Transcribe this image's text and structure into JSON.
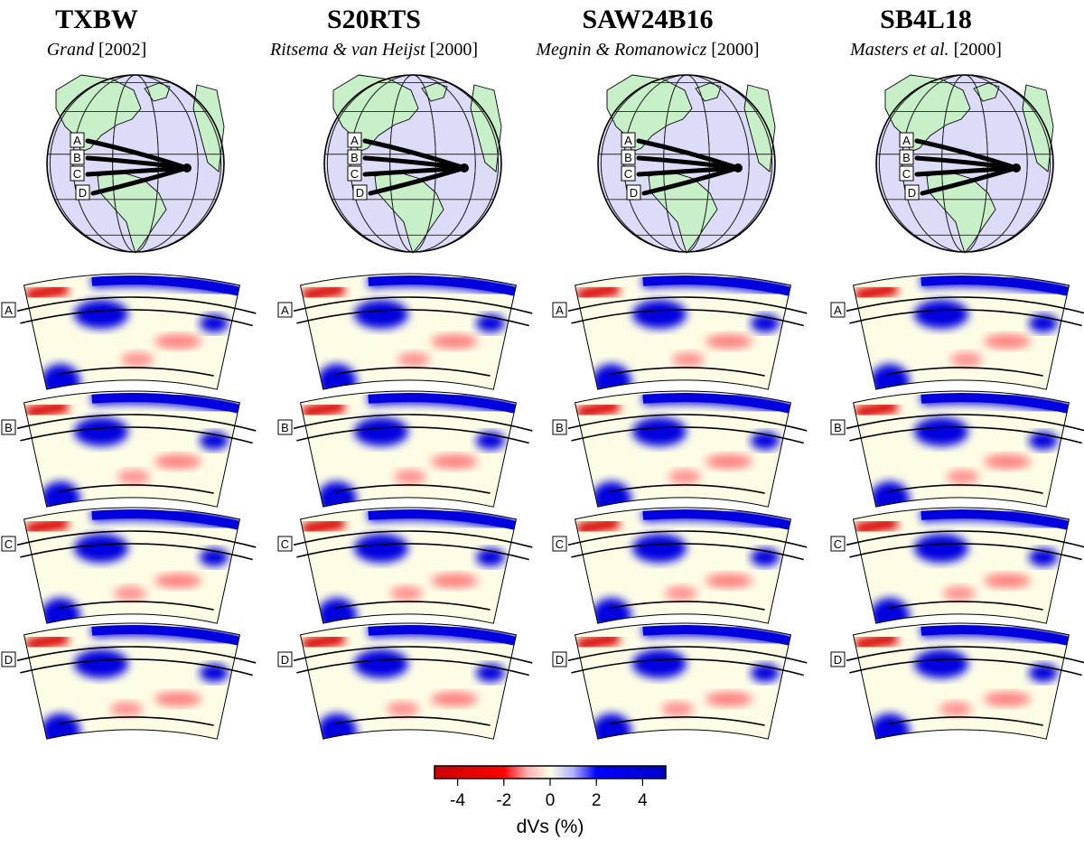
{
  "models": [
    {
      "name": "TXBW",
      "author": "Grand",
      "year": "[2002]"
    },
    {
      "name": "S20RTS",
      "author": "Ritsema & van Heijst",
      "year": "[2000]"
    },
    {
      "name": "SAW24B16",
      "author": "Megnin & Romanowicz",
      "year": "[2000]"
    },
    {
      "name": "SB4L18",
      "author": "Masters",
      "author_suffix": "et al.",
      "year": "[2000]"
    }
  ],
  "paths": [
    "A",
    "B",
    "C",
    "D"
  ],
  "colors": {
    "ocean": "#dcdcf8",
    "land": "#c8f0c8",
    "fast": "#0000e0",
    "slow": "#dd0000",
    "neutral": "#fdfde6"
  },
  "chart_data": {
    "type": "heatmap",
    "colorbar": {
      "ticks": [
        -4,
        -2,
        0,
        2,
        4
      ],
      "tick_labels": [
        "-4",
        "-2",
        "0",
        "2",
        "4"
      ],
      "range": [
        -5,
        5
      ],
      "label": "dVs (%)",
      "colormap": [
        "#dd0000",
        "#fdfde6",
        "#0000e0"
      ]
    }
  }
}
